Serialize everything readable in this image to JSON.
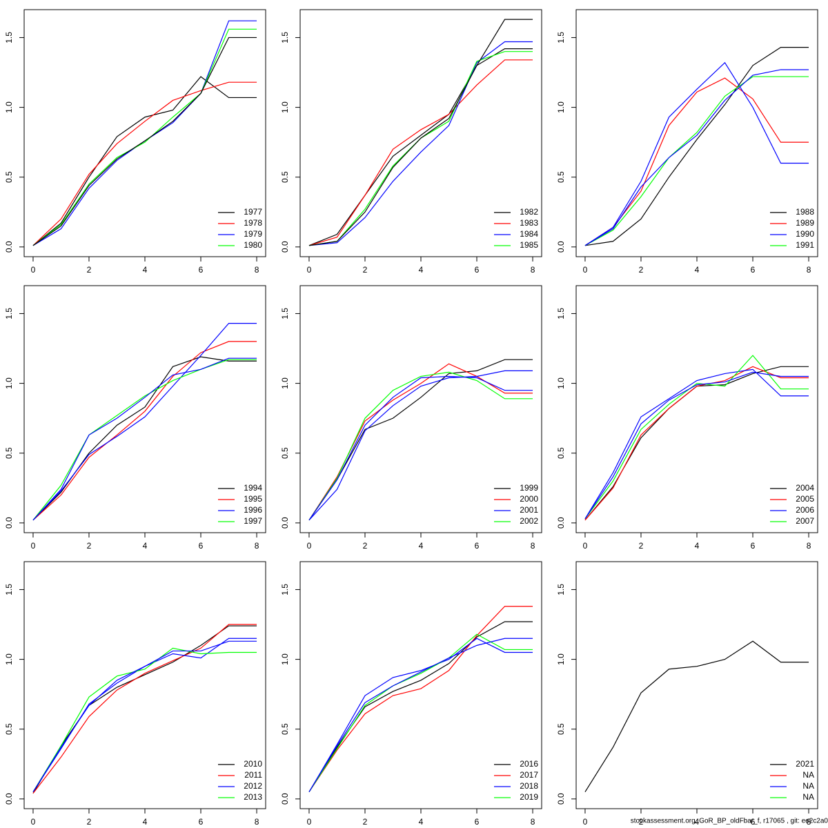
{
  "chart_data": [
    {
      "type": "line",
      "x": [
        0,
        1,
        2,
        3,
        4,
        5,
        6,
        7,
        8
      ],
      "xlim": [
        -0.32,
        8.32
      ],
      "ylim": [
        -0.07,
        1.7
      ],
      "xticks": [
        0,
        2,
        4,
        6,
        8
      ],
      "yticks": [
        {
          "value": 0,
          "label": "0.0"
        },
        {
          "value": 0.5,
          "label": "0.5"
        },
        {
          "value": 1,
          "label": "1.0"
        },
        {
          "value": 1.5,
          "label": "1.5"
        }
      ],
      "legend": "bottomright",
      "series": [
        {
          "name": "1977",
          "color": "#000000",
          "values": [
            0.01,
            0.17,
            0.5,
            0.79,
            0.93,
            0.98,
            1.22,
            1.07,
            1.07
          ]
        },
        {
          "name": "1978",
          "color": "#ff0000",
          "values": [
            0.01,
            0.2,
            0.52,
            0.74,
            0.9,
            1.05,
            1.12,
            1.18,
            1.18
          ]
        },
        {
          "name": "1979",
          "color": "#0000ff",
          "values": [
            0.01,
            0.13,
            0.42,
            0.62,
            0.76,
            0.89,
            1.1,
            1.62,
            1.62
          ]
        },
        {
          "name": "1980",
          "color": "#00ff00",
          "values": [
            0.01,
            0.16,
            0.45,
            0.64,
            0.75,
            0.93,
            1.1,
            1.56,
            1.56
          ]
        },
        {
          "color": "#000000",
          "values": [
            0.01,
            0.15,
            0.44,
            0.63,
            0.76,
            0.9,
            1.1,
            1.5,
            1.5
          ]
        }
      ]
    },
    {
      "type": "line",
      "x": [
        0,
        1,
        2,
        3,
        4,
        5,
        6,
        7,
        8
      ],
      "xlim": [
        -0.32,
        8.32
      ],
      "ylim": [
        -0.07,
        1.7
      ],
      "xticks": [
        0,
        2,
        4,
        6,
        8
      ],
      "yticks": [
        {
          "value": 0,
          "label": "0.0"
        },
        {
          "value": 0.5,
          "label": "0.5"
        },
        {
          "value": 1,
          "label": "1.0"
        },
        {
          "value": 1.5,
          "label": "1.5"
        }
      ],
      "legend": "bottomright",
      "series": [
        {
          "name": "1982",
          "color": "#000000",
          "values": [
            0.01,
            0.09,
            0.37,
            0.65,
            0.8,
            0.95,
            1.3,
            1.42,
            1.42
          ]
        },
        {
          "name": "1983",
          "color": "#ff0000",
          "values": [
            0.01,
            0.07,
            0.37,
            0.7,
            0.84,
            0.95,
            1.16,
            1.34,
            1.34
          ]
        },
        {
          "name": "1984",
          "color": "#0000ff",
          "values": [
            0.01,
            0.03,
            0.21,
            0.47,
            0.68,
            0.87,
            1.32,
            1.47,
            1.47
          ]
        },
        {
          "name": "1985",
          "color": "#00ff00",
          "values": [
            0.01,
            0.04,
            0.27,
            0.58,
            0.78,
            0.9,
            1.33,
            1.4,
            1.4
          ]
        },
        {
          "color": "#000000",
          "values": [
            0.01,
            0.04,
            0.25,
            0.57,
            0.78,
            0.92,
            1.3,
            1.63,
            1.63
          ]
        }
      ]
    },
    {
      "type": "line",
      "x": [
        0,
        1,
        2,
        3,
        4,
        5,
        6,
        7,
        8
      ],
      "xlim": [
        -0.32,
        8.32
      ],
      "ylim": [
        -0.07,
        1.7
      ],
      "xticks": [
        0,
        2,
        4,
        6,
        8
      ],
      "yticks": [
        {
          "value": 0,
          "label": "0.0"
        },
        {
          "value": 0.5,
          "label": "0.5"
        },
        {
          "value": 1,
          "label": "1.0"
        },
        {
          "value": 1.5,
          "label": "1.5"
        }
      ],
      "legend": "bottomright",
      "series": [
        {
          "name": "1988",
          "color": "#000000",
          "values": [
            0.01,
            0.04,
            0.2,
            0.5,
            0.77,
            1.02,
            1.3,
            1.43,
            1.43
          ]
        },
        {
          "name": "1989",
          "color": "#ff0000",
          "values": [
            0.01,
            0.14,
            0.4,
            0.87,
            1.11,
            1.21,
            1.06,
            0.75,
            0.75
          ]
        },
        {
          "name": "1990",
          "color": "#0000ff",
          "values": [
            0.01,
            0.14,
            0.47,
            0.93,
            1.13,
            1.32,
            1.0,
            0.6,
            0.6
          ]
        },
        {
          "name": "1991",
          "color": "#00ff00",
          "values": [
            0.01,
            0.12,
            0.36,
            0.64,
            0.82,
            1.08,
            1.22,
            1.22,
            1.22
          ]
        },
        {
          "color": "#0000ff",
          "values": [
            0.01,
            0.13,
            0.43,
            0.64,
            0.8,
            1.05,
            1.23,
            1.27,
            1.27
          ]
        }
      ]
    },
    {
      "type": "line",
      "x": [
        0,
        1,
        2,
        3,
        4,
        5,
        6,
        7,
        8
      ],
      "xlim": [
        -0.32,
        8.32
      ],
      "ylim": [
        -0.07,
        1.7
      ],
      "xticks": [
        0,
        2,
        4,
        6,
        8
      ],
      "yticks": [
        {
          "value": 0,
          "label": "0.0"
        },
        {
          "value": 0.5,
          "label": "0.5"
        },
        {
          "value": 1,
          "label": "1.0"
        },
        {
          "value": 1.5,
          "label": "1.5"
        }
      ],
      "legend": "bottomright",
      "series": [
        {
          "name": "1994",
          "color": "#000000",
          "values": [
            0.02,
            0.22,
            0.5,
            0.7,
            0.83,
            1.12,
            1.19,
            1.16,
            1.16
          ]
        },
        {
          "name": "1995",
          "color": "#ff0000",
          "values": [
            0.02,
            0.2,
            0.47,
            0.63,
            0.8,
            1.05,
            1.22,
            1.3,
            1.3
          ]
        },
        {
          "name": "1996",
          "color": "#0000ff",
          "values": [
            0.02,
            0.23,
            0.49,
            0.62,
            0.76,
            0.98,
            1.2,
            1.43,
            1.43
          ]
        },
        {
          "name": "1997",
          "color": "#00ff00",
          "values": [
            0.02,
            0.27,
            0.63,
            0.77,
            0.91,
            1.02,
            1.1,
            1.17,
            1.17
          ]
        },
        {
          "color": "#0000ff",
          "values": [
            0.02,
            0.24,
            0.63,
            0.75,
            0.9,
            1.06,
            1.1,
            1.18,
            1.18
          ]
        }
      ]
    },
    {
      "type": "line",
      "x": [
        0,
        1,
        2,
        3,
        4,
        5,
        6,
        7,
        8
      ],
      "xlim": [
        -0.32,
        8.32
      ],
      "ylim": [
        -0.07,
        1.7
      ],
      "xticks": [
        0,
        2,
        4,
        6,
        8
      ],
      "yticks": [
        {
          "value": 0,
          "label": "0.0"
        },
        {
          "value": 0.5,
          "label": "0.5"
        },
        {
          "value": 1,
          "label": "1.0"
        },
        {
          "value": 1.5,
          "label": "1.5"
        }
      ],
      "legend": "bottomright",
      "series": [
        {
          "name": "1999",
          "color": "#000000",
          "values": [
            0.02,
            0.31,
            0.67,
            0.75,
            0.9,
            1.07,
            1.09,
            1.17,
            1.17
          ]
        },
        {
          "name": "2000",
          "color": "#ff0000",
          "values": [
            0.02,
            0.33,
            0.73,
            0.88,
            1.0,
            1.14,
            1.05,
            0.93,
            0.93
          ]
        },
        {
          "name": "2001",
          "color": "#0000ff",
          "values": [
            0.02,
            0.24,
            0.66,
            0.84,
            0.98,
            1.04,
            1.05,
            1.09,
            1.09
          ]
        },
        {
          "name": "2002",
          "color": "#00ff00",
          "values": [
            0.02,
            0.32,
            0.75,
            0.95,
            1.05,
            1.08,
            1.02,
            0.89,
            0.89
          ]
        },
        {
          "color": "#0000ff",
          "values": [
            0.02,
            0.31,
            0.7,
            0.9,
            1.04,
            1.05,
            1.04,
            0.95,
            0.95
          ]
        }
      ]
    },
    {
      "type": "line",
      "x": [
        0,
        1,
        2,
        3,
        4,
        5,
        6,
        7,
        8
      ],
      "xlim": [
        -0.32,
        8.32
      ],
      "ylim": [
        -0.07,
        1.7
      ],
      "xticks": [
        0,
        2,
        4,
        6,
        8
      ],
      "yticks": [
        {
          "value": 0,
          "label": "0.0"
        },
        {
          "value": 0.5,
          "label": "0.5"
        },
        {
          "value": 1,
          "label": "1.0"
        },
        {
          "value": 1.5,
          "label": "1.5"
        }
      ],
      "legend": "bottomright",
      "series": [
        {
          "name": "2004",
          "color": "#000000",
          "values": [
            0.02,
            0.26,
            0.61,
            0.82,
            0.98,
            0.99,
            1.07,
            1.12,
            1.12
          ]
        },
        {
          "name": "2005",
          "color": "#ff0000",
          "values": [
            0.02,
            0.25,
            0.63,
            0.82,
            0.98,
            1.02,
            1.12,
            1.04,
            1.04
          ]
        },
        {
          "name": "2006",
          "color": "#0000ff",
          "values": [
            0.03,
            0.36,
            0.76,
            0.89,
            1.02,
            1.07,
            1.1,
            0.91,
            0.91
          ]
        },
        {
          "name": "2007",
          "color": "#00ff00",
          "values": [
            0.03,
            0.3,
            0.67,
            0.85,
            1.0,
            0.98,
            1.2,
            0.96,
            0.96
          ]
        },
        {
          "color": "#0000ff",
          "values": [
            0.03,
            0.33,
            0.71,
            0.88,
            0.99,
            1.01,
            1.08,
            1.05,
            1.05
          ]
        }
      ]
    },
    {
      "type": "line",
      "x": [
        0,
        1,
        2,
        3,
        4,
        5,
        6,
        7,
        8
      ],
      "xlim": [
        -0.32,
        8.32
      ],
      "ylim": [
        -0.07,
        1.7
      ],
      "xticks": [
        0,
        2,
        4,
        6,
        8
      ],
      "yticks": [
        {
          "value": 0,
          "label": "0.0"
        },
        {
          "value": 0.5,
          "label": "0.5"
        },
        {
          "value": 1,
          "label": "1.0"
        },
        {
          "value": 1.5,
          "label": "1.5"
        }
      ],
      "legend": "bottomright",
      "series": [
        {
          "name": "2010",
          "color": "#000000",
          "values": [
            0.04,
            0.38,
            0.67,
            0.8,
            0.89,
            0.98,
            1.1,
            1.24,
            1.24
          ]
        },
        {
          "name": "2011",
          "color": "#ff0000",
          "values": [
            0.04,
            0.3,
            0.59,
            0.78,
            0.9,
            0.99,
            1.08,
            1.25,
            1.25
          ]
        },
        {
          "name": "2012",
          "color": "#0000ff",
          "values": [
            0.05,
            0.36,
            0.68,
            0.83,
            0.95,
            1.04,
            1.01,
            1.15,
            1.15
          ]
        },
        {
          "name": "2013",
          "color": "#00ff00",
          "values": [
            0.05,
            0.38,
            0.73,
            0.88,
            0.93,
            1.08,
            1.04,
            1.05,
            1.05
          ]
        },
        {
          "color": "#0000ff",
          "values": [
            0.05,
            0.37,
            0.67,
            0.85,
            0.95,
            1.06,
            1.06,
            1.13,
            1.13
          ]
        }
      ]
    },
    {
      "type": "line",
      "x": [
        0,
        1,
        2,
        3,
        4,
        5,
        6,
        7,
        8
      ],
      "xlim": [
        -0.32,
        8.32
      ],
      "ylim": [
        -0.07,
        1.7
      ],
      "xticks": [
        0,
        2,
        4,
        6,
        8
      ],
      "yticks": [
        {
          "value": 0,
          "label": "0.0"
        },
        {
          "value": 0.5,
          "label": "0.5"
        },
        {
          "value": 1,
          "label": "1.0"
        },
        {
          "value": 1.5,
          "label": "1.5"
        }
      ],
      "legend": "bottomright",
      "series": [
        {
          "name": "2016",
          "color": "#000000",
          "values": [
            0.05,
            0.37,
            0.66,
            0.77,
            0.85,
            0.97,
            1.16,
            1.27,
            1.27
          ]
        },
        {
          "name": "2017",
          "color": "#ff0000",
          "values": [
            0.05,
            0.35,
            0.61,
            0.74,
            0.79,
            0.92,
            1.17,
            1.38,
            1.38
          ]
        },
        {
          "name": "2018",
          "color": "#0000ff",
          "values": [
            0.05,
            0.39,
            0.74,
            0.87,
            0.92,
            1.0,
            1.15,
            1.05,
            1.05
          ]
        },
        {
          "name": "2019",
          "color": "#00ff00",
          "values": [
            0.05,
            0.36,
            0.67,
            0.81,
            0.9,
            1.01,
            1.18,
            1.07,
            1.07
          ]
        },
        {
          "color": "#0000ff",
          "values": [
            0.05,
            0.38,
            0.69,
            0.81,
            0.91,
            1.01,
            1.1,
            1.15,
            1.15
          ]
        }
      ]
    },
    {
      "type": "line",
      "x": [
        0,
        1,
        2,
        3,
        4,
        5,
        6,
        7,
        8
      ],
      "xlim": [
        -0.32,
        8.32
      ],
      "ylim": [
        -0.07,
        1.7
      ],
      "xticks": [
        0,
        2,
        4,
        6,
        8
      ],
      "yticks": [
        {
          "value": 0,
          "label": "0.0"
        },
        {
          "value": 0.5,
          "label": "0.5"
        },
        {
          "value": 1,
          "label": "1.0"
        },
        {
          "value": 1.5,
          "label": "1.5"
        }
      ],
      "legend": "bottomright",
      "series": [
        {
          "name": "2021",
          "color": "#000000",
          "values": [
            0.05,
            0.37,
            0.76,
            0.93,
            0.95,
            1.0,
            1.13,
            0.98,
            0.98
          ]
        },
        {
          "name": "NA",
          "color": "#ff0000",
          "values": [
            null,
            null,
            null,
            null,
            null,
            null,
            null,
            null,
            null
          ]
        },
        {
          "name": "NA",
          "color": "#0000ff",
          "values": [
            null,
            null,
            null,
            null,
            null,
            null,
            null,
            null,
            null
          ]
        },
        {
          "name": "NA",
          "color": "#00ff00",
          "values": [
            null,
            null,
            null,
            null,
            null,
            null,
            null,
            null,
            null
          ]
        }
      ]
    }
  ],
  "footer": "stockassessment.org, GoR_BP_oldFbar_f, r17065 , git: ee2c2a0"
}
